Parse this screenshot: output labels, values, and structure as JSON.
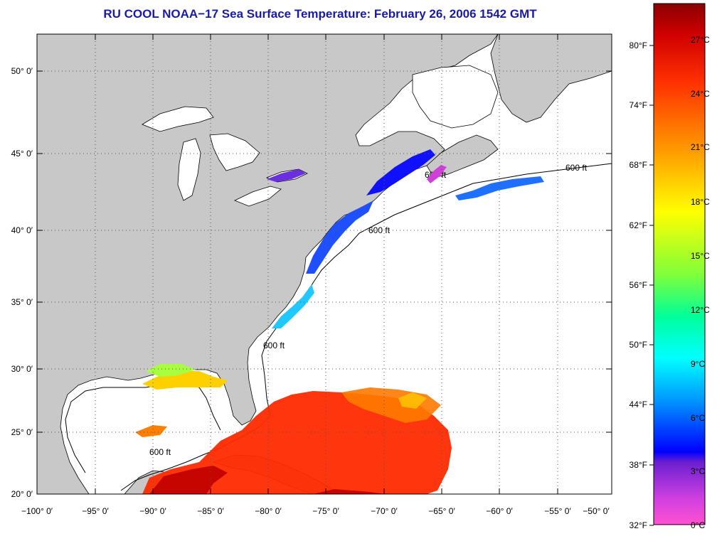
{
  "title": "RU COOL  NOAA−17  Sea Surface Temperature:  February 26, 2006 1542 GMT",
  "map": {
    "lat_labels": [
      "20° 0′",
      "25° 0′",
      "30° 0′",
      "35° 0′",
      "40° 0′",
      "45° 0′",
      "50° 0′"
    ],
    "lon_labels": [
      "−100° 0′",
      "−95° 0′",
      "−90° 0′",
      "−85° 0′",
      "−80° 0′",
      "−75° 0′",
      "−70° 0′",
      "−65° 0′",
      "−60° 0′",
      "−55° 0′",
      "−50° 0′"
    ],
    "isobath_label": "600 ft",
    "land_color": "#c8c8c8",
    "ocean_color": "#ffffff"
  },
  "colorbar": {
    "f_labels": [
      "80°F",
      "74°F",
      "68°F",
      "62°F",
      "56°F",
      "50°F",
      "44°F",
      "38°F",
      "32°F"
    ],
    "c_labels": [
      "27°C",
      "24°C",
      "21°C",
      "18°C",
      "15°C",
      "12°C",
      "9°C",
      "6°C",
      "3°C",
      "0°C"
    ]
  }
}
